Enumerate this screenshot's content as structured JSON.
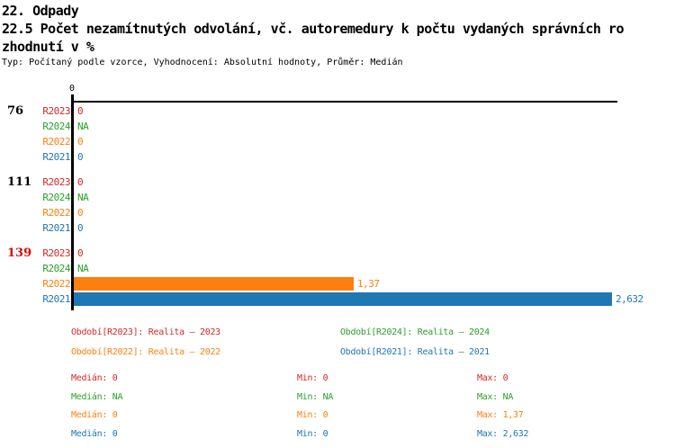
{
  "header": {
    "section_title": "22. Odpady",
    "indicator_title_line1": "22.5 Počet nezamítnutých odvolání, vč. autoremedury k počtu vydaných správních ro",
    "indicator_title_line2": "zhodnutí v %",
    "meta": "Typ: Počítaný podle vzorce, Vyhodnocení: Absolutní hodnoty, Průměr: Medián"
  },
  "colors": {
    "series_r2023": "#d62728",
    "series_r2024": "#2ca02c",
    "series_r2022": "#ff7f0e",
    "series_r2021": "#1f77b4",
    "group_default": "#000000",
    "group_highlight": "#dd0000",
    "axis": "#000000"
  },
  "chart_data": {
    "type": "bar",
    "orientation": "horizontal",
    "axis_tick_label": "0",
    "value_axis_range": [
      0,
      2.66
    ],
    "categories": [
      "76",
      "111",
      "139"
    ],
    "series_order": [
      "R2023",
      "R2024",
      "R2022",
      "R2021"
    ],
    "groups": [
      {
        "label": "76",
        "label_color": "#000000",
        "rows": [
          {
            "series": "R2023",
            "color": "#d62728",
            "value": 0,
            "value_label": "0"
          },
          {
            "series": "R2024",
            "color": "#2ca02c",
            "value": null,
            "value_label": "NA"
          },
          {
            "series": "R2022",
            "color": "#ff7f0e",
            "value": 0,
            "value_label": "0"
          },
          {
            "series": "R2021",
            "color": "#1f77b4",
            "value": 0,
            "value_label": "0"
          }
        ]
      },
      {
        "label": "111",
        "label_color": "#000000",
        "rows": [
          {
            "series": "R2023",
            "color": "#d62728",
            "value": 0,
            "value_label": "0"
          },
          {
            "series": "R2024",
            "color": "#2ca02c",
            "value": null,
            "value_label": "NA"
          },
          {
            "series": "R2022",
            "color": "#ff7f0e",
            "value": 0,
            "value_label": "0"
          },
          {
            "series": "R2021",
            "color": "#1f77b4",
            "value": 0,
            "value_label": "0"
          }
        ]
      },
      {
        "label": "139",
        "label_color": "#dd0000",
        "rows": [
          {
            "series": "R2023",
            "color": "#d62728",
            "value": 0,
            "value_label": "0"
          },
          {
            "series": "R2024",
            "color": "#2ca02c",
            "value": null,
            "value_label": "NA"
          },
          {
            "series": "R2022",
            "color": "#ff7f0e",
            "value": 1.37,
            "value_label": "1,37"
          },
          {
            "series": "R2021",
            "color": "#1f77b4",
            "value": 2.632,
            "value_label": "2,632"
          }
        ]
      }
    ]
  },
  "legend": [
    {
      "label": "Období[R2023]: Realita – 2023",
      "color": "#d62728"
    },
    {
      "label": "Období[R2024]: Realita – 2024",
      "color": "#2ca02c"
    },
    {
      "label": "Období[R2022]: Realita – 2022",
      "color": "#ff7f0e"
    },
    {
      "label": "Období[R2021]: Realita – 2021",
      "color": "#1f77b4"
    }
  ],
  "stats": [
    {
      "color": "#d62728",
      "median_label": "Medián",
      "median": "0",
      "min_label": "Min",
      "min": "0",
      "max_label": "Max",
      "max": "0"
    },
    {
      "color": "#2ca02c",
      "median_label": "Medián",
      "median": "NA",
      "min_label": "Min",
      "min": "NA",
      "max_label": "Max",
      "max": "NA"
    },
    {
      "color": "#ff7f0e",
      "median_label": "Medián",
      "median": "0",
      "min_label": "Min",
      "min": "0",
      "max_label": "Max",
      "max": "1,37"
    },
    {
      "color": "#1f77b4",
      "median_label": "Medián",
      "median": "0",
      "min_label": "Min",
      "min": "0",
      "max_label": "Max",
      "max": "2,632"
    }
  ]
}
